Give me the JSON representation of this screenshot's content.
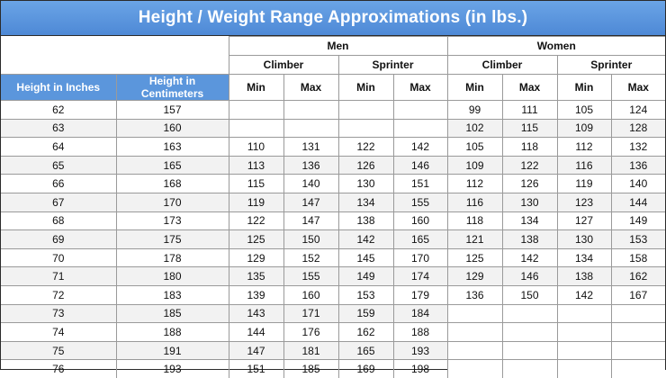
{
  "title": "Height / Weight Range Approximations (in lbs.)",
  "headers": {
    "men": "Men",
    "women": "Women",
    "climber": "Climber",
    "sprinter": "Sprinter",
    "height_in": "Height in Inches",
    "height_cm": "Height in Centimeters",
    "min": "Min",
    "max": "Max"
  },
  "rows": [
    [
      "62",
      "157",
      "",
      "",
      "",
      "",
      "99",
      "111",
      "105",
      "124"
    ],
    [
      "63",
      "160",
      "",
      "",
      "",
      "",
      "102",
      "115",
      "109",
      "128"
    ],
    [
      "64",
      "163",
      "110",
      "131",
      "122",
      "142",
      "105",
      "118",
      "112",
      "132"
    ],
    [
      "65",
      "165",
      "113",
      "136",
      "126",
      "146",
      "109",
      "122",
      "116",
      "136"
    ],
    [
      "66",
      "168",
      "115",
      "140",
      "130",
      "151",
      "112",
      "126",
      "119",
      "140"
    ],
    [
      "67",
      "170",
      "119",
      "147",
      "134",
      "155",
      "116",
      "130",
      "123",
      "144"
    ],
    [
      "68",
      "173",
      "122",
      "147",
      "138",
      "160",
      "118",
      "134",
      "127",
      "149"
    ],
    [
      "69",
      "175",
      "125",
      "150",
      "142",
      "165",
      "121",
      "138",
      "130",
      "153"
    ],
    [
      "70",
      "178",
      "129",
      "152",
      "145",
      "170",
      "125",
      "142",
      "134",
      "158"
    ],
    [
      "71",
      "180",
      "135",
      "155",
      "149",
      "174",
      "129",
      "146",
      "138",
      "162"
    ],
    [
      "72",
      "183",
      "139",
      "160",
      "153",
      "179",
      "136",
      "150",
      "142",
      "167"
    ],
    [
      "73",
      "185",
      "143",
      "171",
      "159",
      "184",
      "",
      "",
      "",
      ""
    ],
    [
      "74",
      "188",
      "144",
      "176",
      "162",
      "188",
      "",
      "",
      "",
      ""
    ],
    [
      "75",
      "191",
      "147",
      "181",
      "165",
      "193",
      "",
      "",
      "",
      ""
    ],
    [
      "76",
      "193",
      "151",
      "185",
      "169",
      "198",
      "",
      "",
      "",
      ""
    ]
  ]
}
